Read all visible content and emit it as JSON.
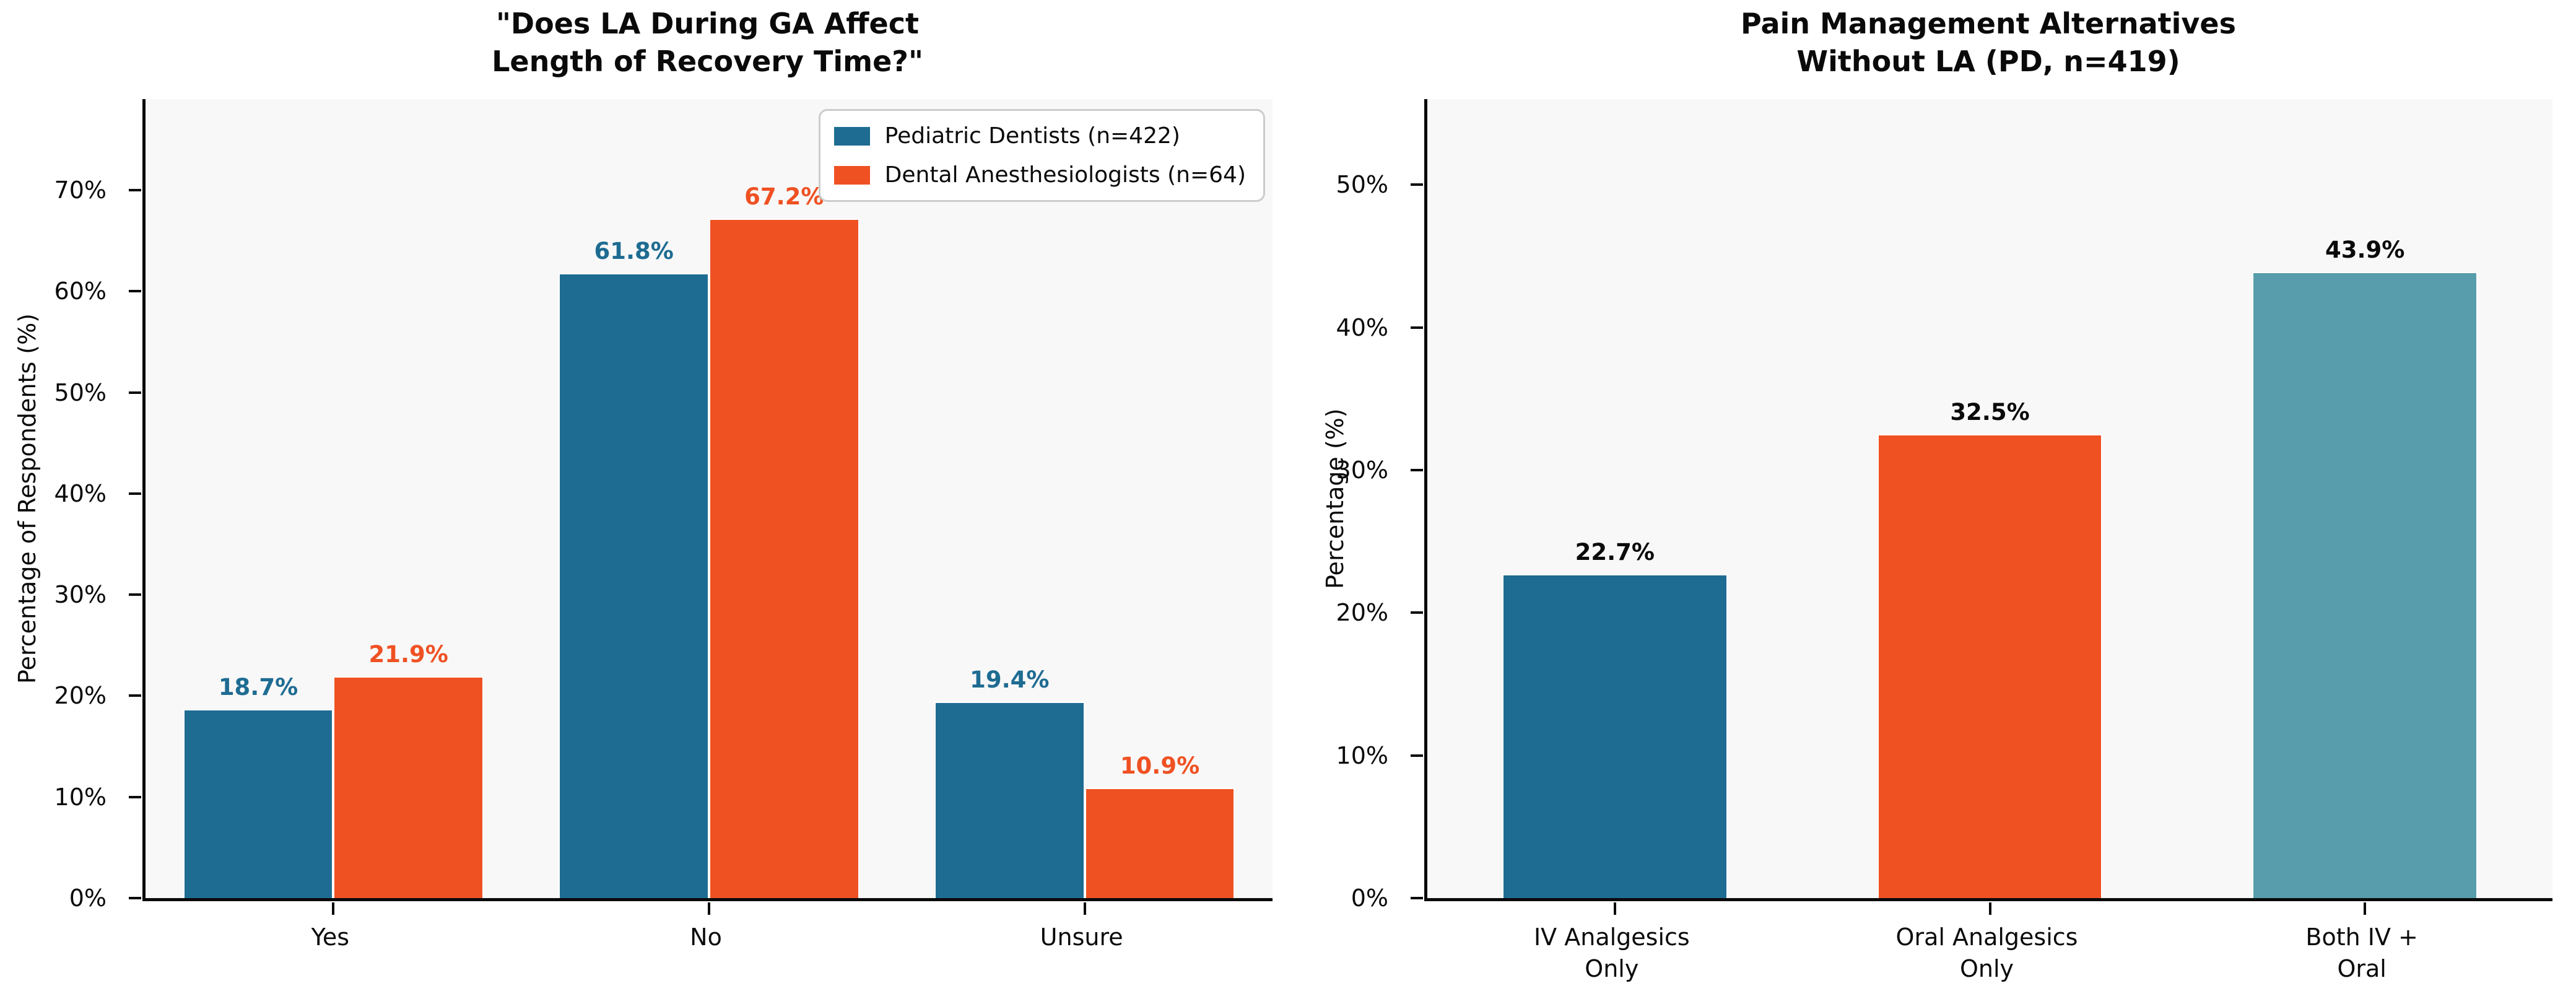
{
  "chart_data": [
    {
      "type": "bar",
      "grouped": true,
      "title_lines": [
        "\"Does LA During GA Affect",
        "Length of Recovery Time?\""
      ],
      "ylabel": "Percentage of Respondents (%)",
      "ylim": [
        0,
        79
      ],
      "yticks": [
        0,
        10,
        20,
        30,
        40,
        50,
        60,
        70
      ],
      "ytick_suffix": "%",
      "categories": [
        "Yes",
        "No",
        "Unsure"
      ],
      "series": [
        {
          "name": "Pediatric Dentists (n=422)",
          "color": "#1e6c92",
          "values": [
            18.7,
            61.8,
            19.4
          ]
        },
        {
          "name": "Dental Anesthesiologists (n=64)",
          "color": "#ef5123",
          "values": [
            21.9,
            67.2,
            10.9
          ]
        }
      ],
      "group_width": 0.8,
      "value_label_suffix": "%",
      "value_label_color": "series",
      "legend_position": "upper right",
      "grid": false,
      "plot_background": "#f8f8f8"
    },
    {
      "type": "bar",
      "grouped": false,
      "title_lines": [
        "Pain Management Alternatives",
        "Without LA (PD, n=419)"
      ],
      "ylabel": "Percentage (%)",
      "ylim": [
        0,
        56
      ],
      "yticks": [
        0,
        10,
        20,
        30,
        40,
        50
      ],
      "ytick_suffix": "%",
      "categories": [
        [
          "IV Analgesics",
          "Only"
        ],
        [
          "Oral Analgesics",
          "Only"
        ],
        [
          "Both IV +",
          "Oral"
        ]
      ],
      "values": [
        22.7,
        32.5,
        43.9
      ],
      "bar_colors": [
        "#1e6c92",
        "#ef5123",
        "#579dab"
      ],
      "bar_width": 0.6,
      "value_label_suffix": "%",
      "value_label_color": "#0a0a0a",
      "grid": false,
      "plot_background": "#f8f8f8"
    }
  ]
}
